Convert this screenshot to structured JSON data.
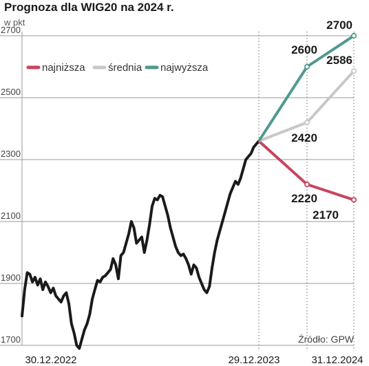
{
  "chart_data": {
    "type": "line",
    "title": "Prognoza dla WIG20 na 2024 r.",
    "unit": "w pkt",
    "ylim": [
      1700,
      2700
    ],
    "yticks": [
      1700,
      1900,
      2100,
      2300,
      2500,
      2700
    ],
    "ytick_labels": [
      "1700",
      "1900",
      "2100",
      "2300",
      "2500",
      "2700"
    ],
    "xtick_labels": [
      "30.12.2022",
      "29.12.2023",
      "31.12.2024"
    ],
    "source": "Źródło: GPW",
    "grid": true,
    "legend_placement": "top-left",
    "history": {
      "name": "WIG20",
      "color": "#1a1a1a",
      "values": [
        1795,
        1880,
        1935,
        1930,
        1905,
        1920,
        1895,
        1915,
        1880,
        1905,
        1890,
        1870,
        1885,
        1860,
        1850,
        1840,
        1860,
        1870,
        1835,
        1770,
        1740,
        1700,
        1690,
        1720,
        1750,
        1770,
        1800,
        1850,
        1880,
        1910,
        1905,
        1920,
        1925,
        1935,
        1945,
        1980,
        1960,
        1915,
        1990,
        2000,
        2030,
        2060,
        2100,
        2080,
        2030,
        2040,
        2050,
        2000,
        2040,
        2090,
        2150,
        2175,
        2170,
        2185,
        2180,
        2150,
        2120,
        2080,
        2050,
        2020,
        2000,
        1990,
        1995,
        1980,
        1960,
        1930,
        1960,
        1950,
        1920,
        1900,
        1880,
        1870,
        1890,
        1950,
        2000,
        2040,
        2070,
        2100,
        2130,
        2160,
        2190,
        2210,
        2230,
        2220,
        2240,
        2270,
        2300,
        2310,
        2320,
        2340,
        2350,
        2360
      ]
    },
    "forecasts": [
      {
        "name": "najniższa",
        "color": "#c8445f",
        "values": [
          2360,
          2220,
          2170
        ],
        "labels": [
          "",
          "2220",
          "2170"
        ]
      },
      {
        "name": "średnia",
        "color": "#c8c8c8",
        "values": [
          2360,
          2420,
          2586
        ],
        "labels": [
          "",
          "2420",
          "2586"
        ]
      },
      {
        "name": "najwyższa",
        "color": "#4f9a8e",
        "values": [
          2360,
          2600,
          2700
        ],
        "labels": [
          "",
          "2600",
          "2700"
        ]
      }
    ]
  }
}
